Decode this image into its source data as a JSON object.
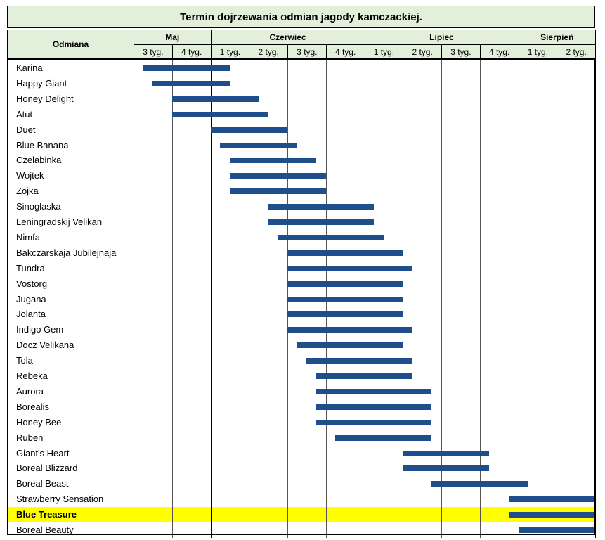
{
  "chart_data": {
    "type": "gantt",
    "title": "Termin dojrzewania odmian jagody kamczackiej.",
    "variety_header": "Odmiana",
    "months": [
      {
        "name": "Maj",
        "weeks": [
          "3 tyg.",
          "4 tyg."
        ]
      },
      {
        "name": "Czerwiec",
        "weeks": [
          "1 tyg.",
          "2 tyg.",
          "3 tyg.",
          "4 tyg."
        ]
      },
      {
        "name": "Lipiec",
        "weeks": [
          "1 tyg.",
          "2 tyg.",
          "3 tyg.",
          "4 tyg."
        ]
      },
      {
        "name": "Sierpień",
        "weeks": [
          "1 tyg.",
          "2 tyg."
        ]
      }
    ],
    "series": [
      {
        "name": "Karina",
        "start": 0.25,
        "end": 2.5
      },
      {
        "name": "Happy Giant",
        "start": 0.5,
        "end": 2.5
      },
      {
        "name": "Honey Delight",
        "start": 1.0,
        "end": 3.25
      },
      {
        "name": "Atut",
        "start": 1.0,
        "end": 3.5
      },
      {
        "name": "Duet",
        "start": 2.0,
        "end": 4.0
      },
      {
        "name": "Blue Banana",
        "start": 2.25,
        "end": 4.25
      },
      {
        "name": "Czelabinka",
        "start": 2.5,
        "end": 4.75
      },
      {
        "name": "Wojtek",
        "start": 2.5,
        "end": 5.0
      },
      {
        "name": "Zojka",
        "start": 2.5,
        "end": 5.0
      },
      {
        "name": "Sinogłaska",
        "start": 3.5,
        "end": 6.25
      },
      {
        "name": "Leningradskij Velikan",
        "start": 3.5,
        "end": 6.25
      },
      {
        "name": "Nimfa",
        "start": 3.75,
        "end": 6.5
      },
      {
        "name": "Bakczarskaja Jubilejnaja",
        "start": 4.0,
        "end": 7.0
      },
      {
        "name": "Tundra",
        "start": 4.0,
        "end": 7.25
      },
      {
        "name": "Vostorg",
        "start": 4.0,
        "end": 7.0
      },
      {
        "name": "Jugana",
        "start": 4.0,
        "end": 7.0
      },
      {
        "name": "Jolanta",
        "start": 4.0,
        "end": 7.0
      },
      {
        "name": "Indigo Gem",
        "start": 4.0,
        "end": 7.25
      },
      {
        "name": "Docz Velikana",
        "start": 4.25,
        "end": 7.0
      },
      {
        "name": "Tola",
        "start": 4.5,
        "end": 7.25
      },
      {
        "name": "Rebeka",
        "start": 4.75,
        "end": 7.25
      },
      {
        "name": "Aurora",
        "start": 4.75,
        "end": 7.75
      },
      {
        "name": "Borealis",
        "start": 4.75,
        "end": 7.75
      },
      {
        "name": "Honey Bee",
        "start": 4.75,
        "end": 7.75
      },
      {
        "name": "Ruben",
        "start": 5.25,
        "end": 7.75
      },
      {
        "name": "Giant's Heart",
        "start": 7.0,
        "end": 9.25
      },
      {
        "name": "Boreal Blizzard",
        "start": 7.0,
        "end": 9.25
      },
      {
        "name": "Boreal Beast",
        "start": 7.75,
        "end": 10.25
      },
      {
        "name": "Strawberry Sensation",
        "start": 9.75,
        "end": 12.0
      },
      {
        "name": "Blue Treasure",
        "start": 9.75,
        "end": 12.0,
        "highlight": true
      },
      {
        "name": "Boreal Beauty",
        "start": 10.0,
        "end": 12.0
      }
    ],
    "xlim": [
      0,
      12
    ],
    "grid": true,
    "legend": "none"
  },
  "colors": {
    "header_bg": "#e2efda",
    "bar": "#1f4e8c",
    "highlight": "#ffff00",
    "grid": "#000000"
  }
}
